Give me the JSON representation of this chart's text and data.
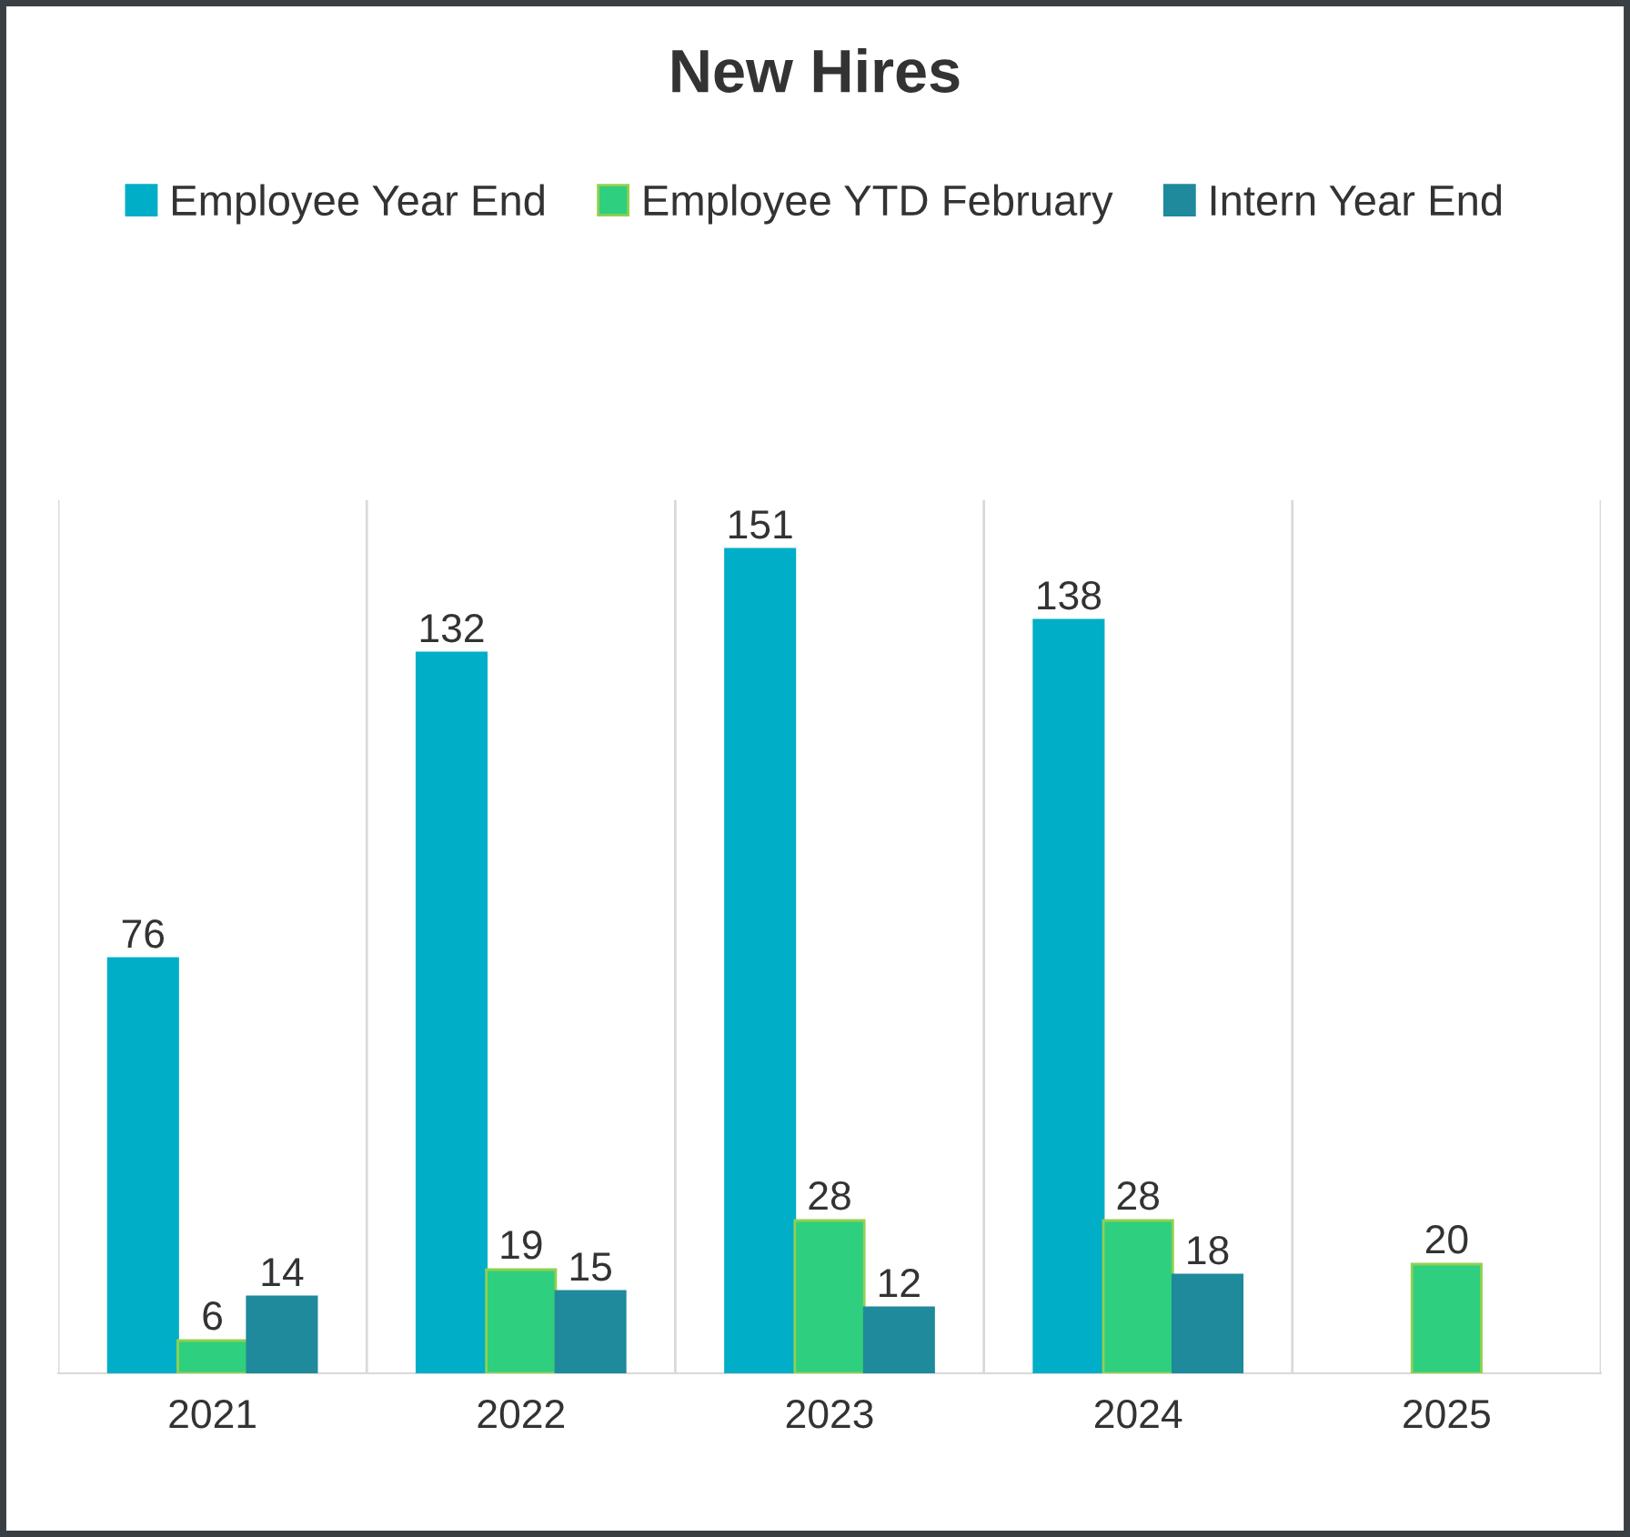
{
  "chart_data": {
    "type": "bar",
    "title": "New Hires",
    "categories": [
      "2021",
      "2022",
      "2023",
      "2024",
      "2025"
    ],
    "series": [
      {
        "name": "Employee Year End",
        "color": "#00aec7",
        "values": [
          76,
          132,
          151,
          138,
          null
        ]
      },
      {
        "name": "Employee YTD February",
        "color": "#2ecf7e",
        "values": [
          6,
          19,
          28,
          28,
          20
        ]
      },
      {
        "name": "Intern Year End",
        "color": "#1e8a9c",
        "values": [
          14,
          15,
          12,
          18,
          null
        ]
      }
    ],
    "ylim": [
      0,
      160
    ],
    "data_labels": true,
    "grid": "x",
    "legend": "top",
    "tick_labels": "x"
  }
}
